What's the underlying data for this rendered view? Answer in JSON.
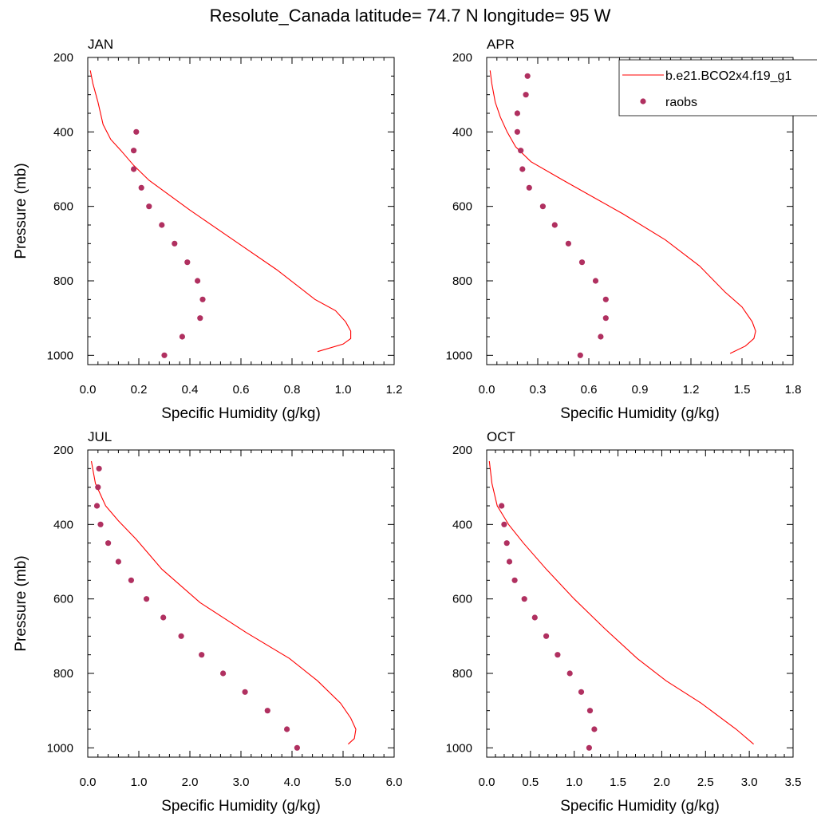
{
  "figure_title": "Resolute_Canada  latitude= 74.7 N longitude= 95 W",
  "colors": {
    "model": "#ff0000",
    "obs": "#b03060",
    "axis": "#000000"
  },
  "legend": {
    "model_label": "b.e21.BCO2x4.f19_g1",
    "obs_label": "raobs",
    "placement": "top-right"
  },
  "chart_data": [
    {
      "type": "line",
      "panel": "JAN",
      "xlabel": "Specific Humidity (g/kg)",
      "ylabel": "Pressure (mb)",
      "xlim": [
        0,
        1.2
      ],
      "ylim": [
        200,
        1025
      ],
      "y_inverted": true,
      "xticks": [
        "0.0",
        "0.2",
        "0.4",
        "0.6",
        "0.8",
        "1.0",
        "1.2"
      ],
      "yticks": [
        "200",
        "400",
        "600",
        "800",
        "1000"
      ],
      "series": [
        {
          "name": "b.e21.BCO2x4.f19_g1",
          "kind": "line",
          "x": [
            0.01,
            0.02,
            0.04,
            0.06,
            0.09,
            0.13,
            0.18,
            0.24,
            0.4,
            0.57,
            0.74,
            0.89,
            0.97,
            1.01,
            1.03,
            1.03,
            1.0,
            0.9
          ],
          "y": [
            235,
            270,
            320,
            380,
            420,
            450,
            490,
            530,
            610,
            690,
            770,
            850,
            880,
            910,
            935,
            955,
            970,
            990
          ]
        },
        {
          "name": "raobs",
          "kind": "scatter",
          "x": [
            0.19,
            0.18,
            0.18,
            0.21,
            0.24,
            0.29,
            0.34,
            0.39,
            0.43,
            0.45,
            0.44,
            0.37,
            0.3
          ],
          "y": [
            400,
            450,
            500,
            550,
            600,
            650,
            700,
            750,
            800,
            850,
            900,
            950,
            1000
          ]
        }
      ]
    },
    {
      "type": "line",
      "panel": "APR",
      "xlabel": "Specific Humidity (g/kg)",
      "ylabel": "",
      "xlim": [
        0,
        1.8
      ],
      "ylim": [
        200,
        1025
      ],
      "y_inverted": true,
      "xticks": [
        "0.0",
        "0.3",
        "0.6",
        "0.9",
        "1.2",
        "1.5",
        "1.8"
      ],
      "yticks": [
        "200",
        "400",
        "600",
        "800",
        "1000"
      ],
      "series": [
        {
          "name": "b.e21.BCO2x4.f19_g1",
          "kind": "line",
          "x": [
            0.02,
            0.03,
            0.05,
            0.08,
            0.12,
            0.17,
            0.26,
            0.45,
            0.8,
            1.05,
            1.25,
            1.4,
            1.5,
            1.56,
            1.58,
            1.57,
            1.52,
            1.43
          ],
          "y": [
            235,
            270,
            320,
            360,
            400,
            440,
            480,
            530,
            620,
            690,
            760,
            830,
            870,
            910,
            935,
            955,
            975,
            995
          ]
        },
        {
          "name": "raobs",
          "kind": "scatter",
          "x": [
            0.24,
            0.23,
            0.18,
            0.18,
            0.2,
            0.21,
            0.25,
            0.33,
            0.4,
            0.48,
            0.56,
            0.64,
            0.7,
            0.7,
            0.67,
            0.55
          ],
          "y": [
            250,
            300,
            350,
            400,
            450,
            500,
            550,
            600,
            650,
            700,
            750,
            800,
            850,
            900,
            950,
            1000
          ]
        }
      ]
    },
    {
      "type": "line",
      "panel": "JUL",
      "xlabel": "Specific Humidity (g/kg)",
      "ylabel": "Pressure (mb)",
      "xlim": [
        0,
        6.0
      ],
      "ylim": [
        200,
        1025
      ],
      "y_inverted": true,
      "xticks": [
        "0.0",
        "1.0",
        "2.0",
        "3.0",
        "4.0",
        "5.0",
        "6.0"
      ],
      "yticks": [
        "200",
        "400",
        "600",
        "800",
        "1000"
      ],
      "series": [
        {
          "name": "b.e21.BCO2x4.f19_g1",
          "kind": "line",
          "x": [
            0.07,
            0.15,
            0.35,
            0.6,
            0.95,
            1.45,
            2.2,
            3.1,
            3.95,
            4.5,
            4.95,
            5.15,
            5.25,
            5.22,
            5.1
          ],
          "y": [
            230,
            290,
            350,
            390,
            440,
            520,
            610,
            690,
            760,
            820,
            880,
            920,
            950,
            975,
            990
          ]
        },
        {
          "name": "raobs",
          "kind": "scatter",
          "x": [
            0.22,
            0.2,
            0.18,
            0.25,
            0.4,
            0.6,
            0.85,
            1.15,
            1.48,
            1.83,
            2.23,
            2.65,
            3.08,
            3.52,
            3.9,
            4.1
          ],
          "y": [
            250,
            300,
            350,
            400,
            450,
            500,
            550,
            600,
            650,
            700,
            750,
            800,
            850,
            900,
            950,
            1000
          ]
        }
      ]
    },
    {
      "type": "line",
      "panel": "OCT",
      "xlabel": "Specific Humidity (g/kg)",
      "ylabel": "",
      "xlim": [
        0,
        3.5
      ],
      "ylim": [
        200,
        1025
      ],
      "y_inverted": true,
      "xticks": [
        "0.0",
        "0.5",
        "1.0",
        "1.5",
        "2.0",
        "2.5",
        "3.0",
        "3.5"
      ],
      "yticks": [
        "200",
        "400",
        "600",
        "800",
        "1000"
      ],
      "series": [
        {
          "name": "b.e21.BCO2x4.f19_g1",
          "kind": "line",
          "x": [
            0.03,
            0.06,
            0.12,
            0.25,
            0.42,
            0.68,
            1.0,
            1.35,
            1.72,
            2.05,
            2.45,
            2.85,
            3.05
          ],
          "y": [
            230,
            290,
            350,
            400,
            450,
            520,
            600,
            680,
            760,
            820,
            880,
            950,
            990
          ]
        },
        {
          "name": "raobs",
          "kind": "scatter",
          "x": [
            0.17,
            0.2,
            0.23,
            0.26,
            0.32,
            0.43,
            0.55,
            0.68,
            0.81,
            0.95,
            1.08,
            1.18,
            1.23,
            1.17
          ],
          "y": [
            350,
            400,
            450,
            500,
            550,
            600,
            650,
            700,
            750,
            800,
            850,
            900,
            950,
            1000
          ]
        }
      ]
    }
  ]
}
